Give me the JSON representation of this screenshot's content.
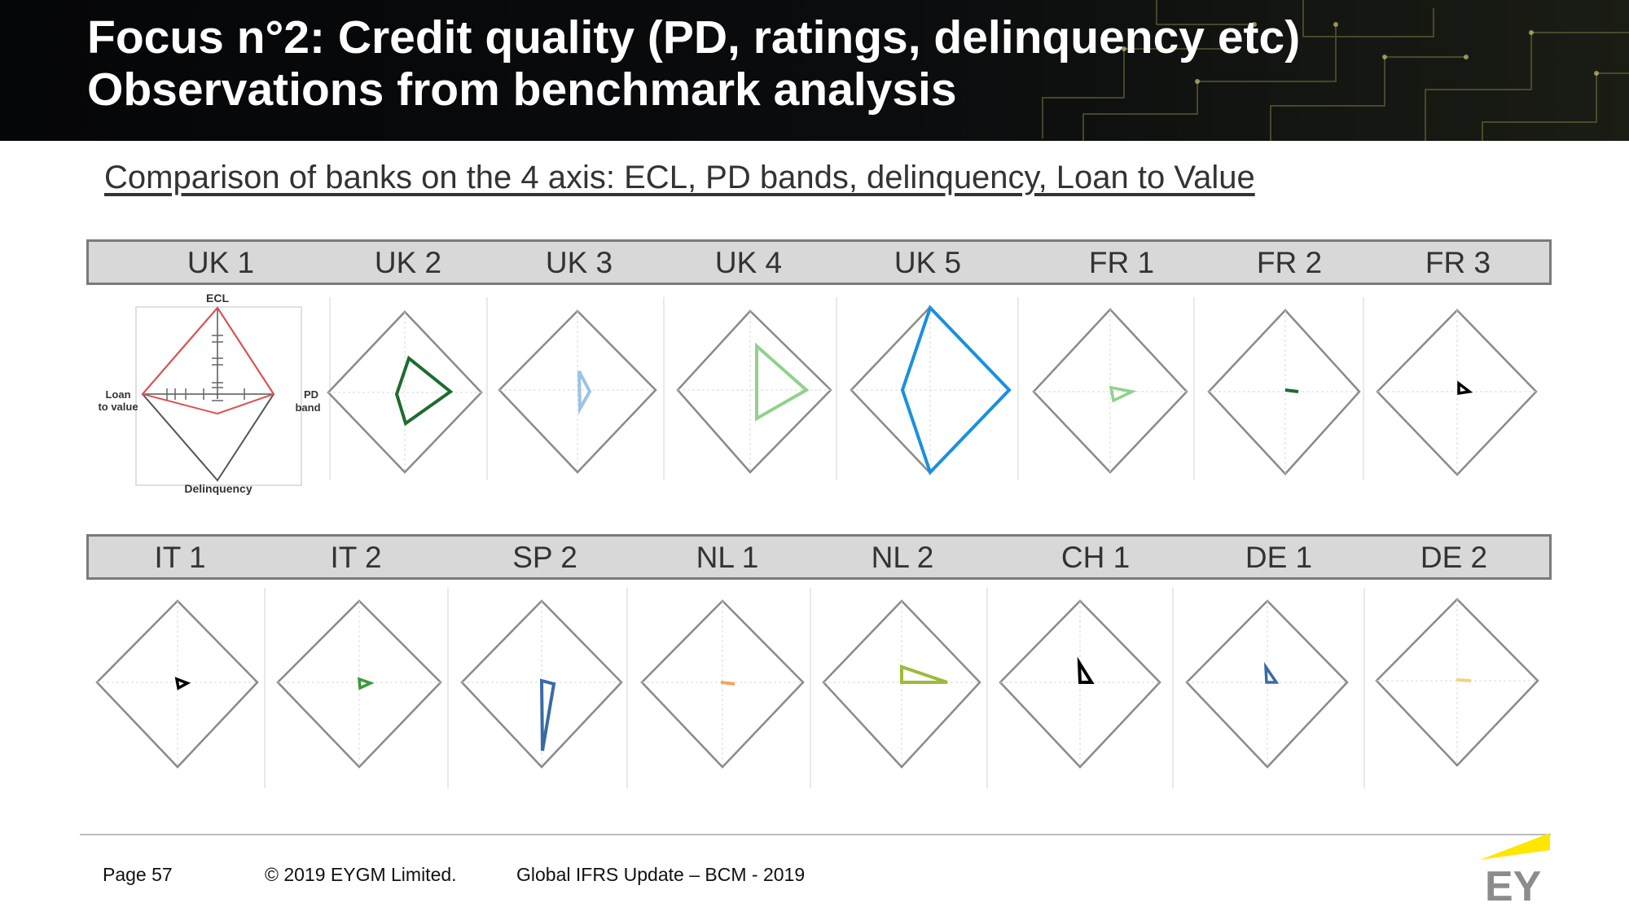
{
  "title": {
    "line1": "Focus n°2: Credit quality (PD, ratings, delinquency etc)",
    "line2": "Observations from benchmark analysis"
  },
  "subtitle": "Comparison of banks on the 4 axis: ECL, PD bands, delinquency, Loan to Value",
  "legend_axes": {
    "top": "ECL",
    "right_line1": "PD",
    "right_line2": "band",
    "left_line1": "Loan",
    "left_line2": "to value",
    "bottom": "Delinquency"
  },
  "colors": {
    "legend_red": "#e05050",
    "dark_green": "#1f6b2e",
    "light_blue": "#9cc3e6",
    "light_green": "#8fd28c",
    "bright_blue": "#1a8fe0",
    "black": "#000000",
    "green": "#3a9a3a",
    "navy_blue": "#3a6aa6",
    "orange": "#f2a65a",
    "olive": "#9bbb3b",
    "pale_yellow": "#f6d27a",
    "ey_yellow": "#ffe600"
  },
  "rows": [
    {
      "banks": [
        {
          "label": "UK 1",
          "legend": true
        },
        {
          "label": "UK 2",
          "shape": "dark-green-pentagon"
        },
        {
          "label": "UK 3",
          "shape": "light-blue-sliver"
        },
        {
          "label": "UK 4",
          "shape": "light-green-triangle"
        },
        {
          "label": "UK 5",
          "shape": "blue-large-quad"
        },
        {
          "label": "FR 1",
          "shape": "light-green-small-triangle"
        },
        {
          "label": "FR 2",
          "shape": "dark-green-dash"
        },
        {
          "label": "FR 3",
          "shape": "black-small-triangle"
        }
      ]
    },
    {
      "banks": [
        {
          "label": "IT 1",
          "shape": "black-small-triangle"
        },
        {
          "label": "IT 2",
          "shape": "green-small-triangle"
        },
        {
          "label": "SP 2",
          "shape": "navy-tall-sliver"
        },
        {
          "label": "NL 1",
          "shape": "orange-dash"
        },
        {
          "label": "NL 2",
          "shape": "olive-triangle"
        },
        {
          "label": "CH 1",
          "shape": "black-small-triangle"
        },
        {
          "label": "DE 1",
          "shape": "navy-small-triangle"
        },
        {
          "label": "DE 2",
          "shape": "yellow-dash"
        }
      ]
    }
  ],
  "footer": {
    "page": "Page 57",
    "copyright": "© 2019 EYGM Limited.",
    "event": "Global IFRS Update – BCM - 2019",
    "logo_text": "EY"
  }
}
